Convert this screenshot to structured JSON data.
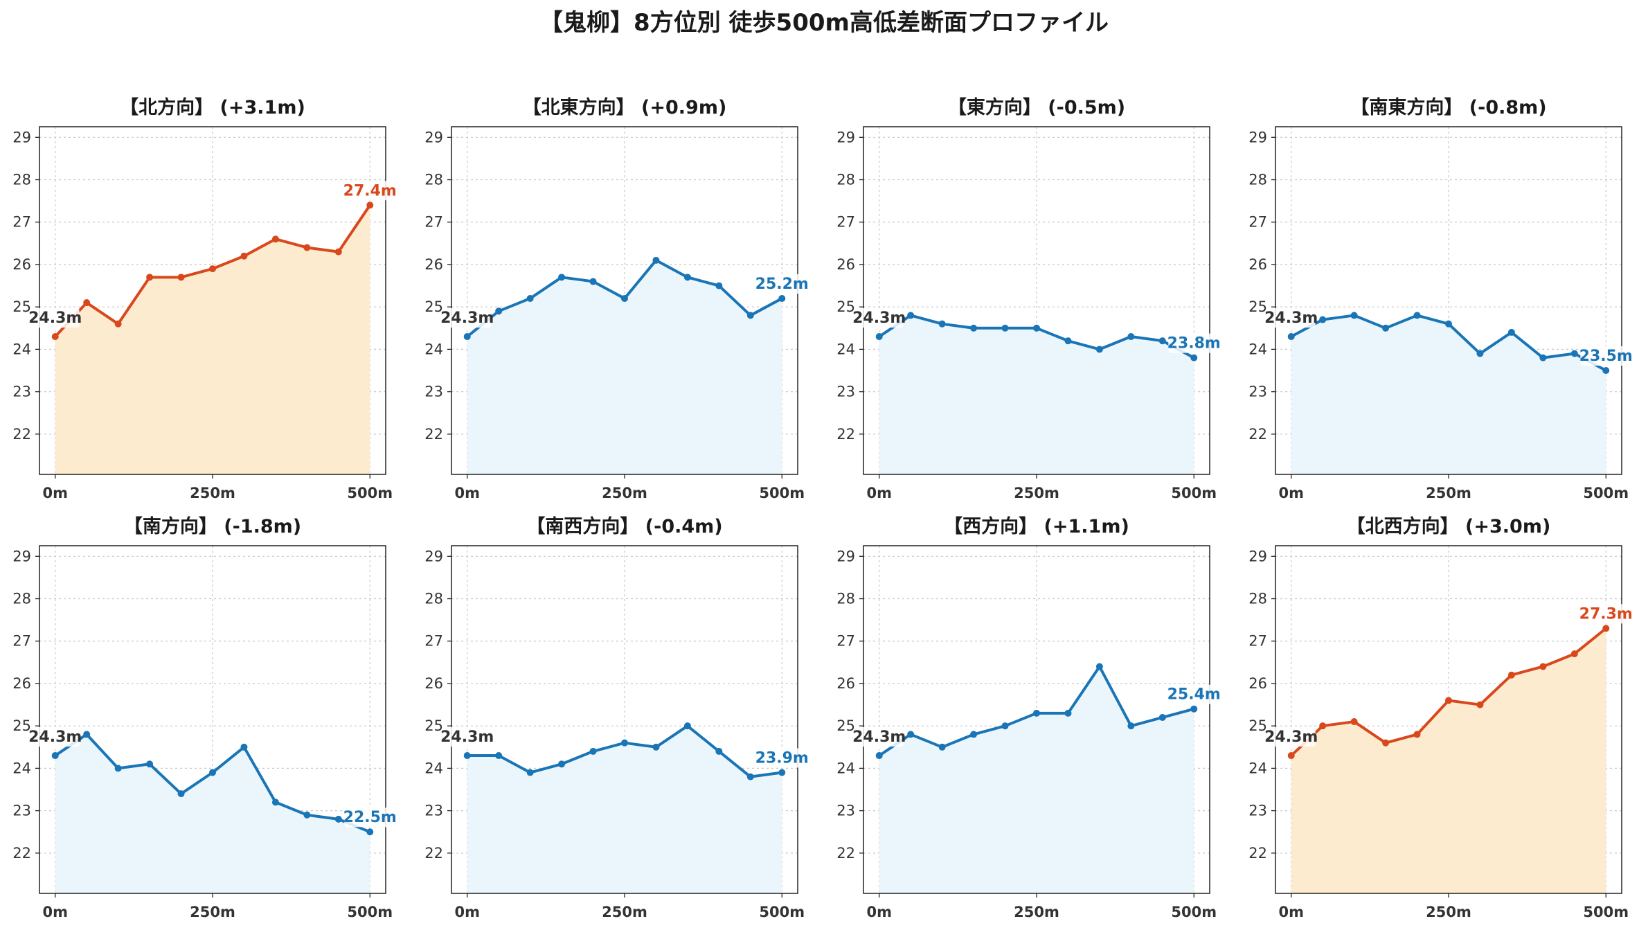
{
  "figure": {
    "title": "【鬼柳】8方位別 徒歩500m高低差断面プロファイル",
    "colors": {
      "rise_line": "#d9481c",
      "rise_fill": "#fdebd0",
      "fall_line": "#1a75b6",
      "fall_fill": "#eaf6fc",
      "start_label": "#333333"
    }
  },
  "chart_data": [
    {
      "type": "area",
      "title": "【北方向】 (+3.1m)",
      "trend": "rise",
      "x": [
        0,
        50,
        100,
        150,
        200,
        250,
        300,
        350,
        400,
        450,
        500
      ],
      "y": [
        24.3,
        25.1,
        24.6,
        25.7,
        25.7,
        25.9,
        26.2,
        26.6,
        26.4,
        26.3,
        27.4
      ],
      "start_label": "24.3m",
      "end_label": "27.4m",
      "xticks": [
        {
          "v": 0,
          "label": "0m"
        },
        {
          "v": 250,
          "label": "250m"
        },
        {
          "v": 500,
          "label": "500m"
        }
      ],
      "yticks": [
        22,
        23,
        24,
        25,
        26,
        27,
        28,
        29
      ],
      "ylim": [
        21.05,
        29.25
      ],
      "xlim": [
        -25,
        525
      ],
      "grid": true
    },
    {
      "type": "area",
      "title": "【北東方向】 (+0.9m)",
      "trend": "fall",
      "x": [
        0,
        50,
        100,
        150,
        200,
        250,
        300,
        350,
        400,
        450,
        500
      ],
      "y": [
        24.3,
        24.9,
        25.2,
        25.7,
        25.6,
        25.2,
        26.1,
        25.7,
        25.5,
        24.8,
        25.2
      ],
      "start_label": "24.3m",
      "end_label": "25.2m",
      "xticks": [
        {
          "v": 0,
          "label": "0m"
        },
        {
          "v": 250,
          "label": "250m"
        },
        {
          "v": 500,
          "label": "500m"
        }
      ],
      "yticks": [
        22,
        23,
        24,
        25,
        26,
        27,
        28,
        29
      ],
      "ylim": [
        21.05,
        29.25
      ],
      "xlim": [
        -25,
        525
      ],
      "grid": true
    },
    {
      "type": "area",
      "title": "【東方向】 (-0.5m)",
      "trend": "fall",
      "x": [
        0,
        50,
        100,
        150,
        200,
        250,
        300,
        350,
        400,
        450,
        500
      ],
      "y": [
        24.3,
        24.8,
        24.6,
        24.5,
        24.5,
        24.5,
        24.2,
        24.0,
        24.3,
        24.2,
        23.8
      ],
      "start_label": "24.3m",
      "end_label": "23.8m",
      "xticks": [
        {
          "v": 0,
          "label": "0m"
        },
        {
          "v": 250,
          "label": "250m"
        },
        {
          "v": 500,
          "label": "500m"
        }
      ],
      "yticks": [
        22,
        23,
        24,
        25,
        26,
        27,
        28,
        29
      ],
      "ylim": [
        21.05,
        29.25
      ],
      "xlim": [
        -25,
        525
      ],
      "grid": true
    },
    {
      "type": "area",
      "title": "【南東方向】 (-0.8m)",
      "trend": "fall",
      "x": [
        0,
        50,
        100,
        150,
        200,
        250,
        300,
        350,
        400,
        450,
        500
      ],
      "y": [
        24.3,
        24.7,
        24.8,
        24.5,
        24.8,
        24.6,
        23.9,
        24.4,
        23.8,
        23.9,
        23.5
      ],
      "start_label": "24.3m",
      "end_label": "23.5m",
      "xticks": [
        {
          "v": 0,
          "label": "0m"
        },
        {
          "v": 250,
          "label": "250m"
        },
        {
          "v": 500,
          "label": "500m"
        }
      ],
      "yticks": [
        22,
        23,
        24,
        25,
        26,
        27,
        28,
        29
      ],
      "ylim": [
        21.05,
        29.25
      ],
      "xlim": [
        -25,
        525
      ],
      "grid": true
    },
    {
      "type": "area",
      "title": "【南方向】 (-1.8m)",
      "trend": "fall",
      "x": [
        0,
        50,
        100,
        150,
        200,
        250,
        300,
        350,
        400,
        450,
        500
      ],
      "y": [
        24.3,
        24.8,
        24.0,
        24.1,
        23.4,
        23.9,
        24.5,
        23.2,
        22.9,
        22.8,
        22.5
      ],
      "start_label": "24.3m",
      "end_label": "22.5m",
      "xticks": [
        {
          "v": 0,
          "label": "0m"
        },
        {
          "v": 250,
          "label": "250m"
        },
        {
          "v": 500,
          "label": "500m"
        }
      ],
      "yticks": [
        22,
        23,
        24,
        25,
        26,
        27,
        28,
        29
      ],
      "ylim": [
        21.05,
        29.25
      ],
      "xlim": [
        -25,
        525
      ],
      "grid": true
    },
    {
      "type": "area",
      "title": "【南西方向】 (-0.4m)",
      "trend": "fall",
      "x": [
        0,
        50,
        100,
        150,
        200,
        250,
        300,
        350,
        400,
        450,
        500
      ],
      "y": [
        24.3,
        24.3,
        23.9,
        24.1,
        24.4,
        24.6,
        24.5,
        25.0,
        24.4,
        23.8,
        23.9
      ],
      "start_label": "24.3m",
      "end_label": "23.9m",
      "xticks": [
        {
          "v": 0,
          "label": "0m"
        },
        {
          "v": 250,
          "label": "250m"
        },
        {
          "v": 500,
          "label": "500m"
        }
      ],
      "yticks": [
        22,
        23,
        24,
        25,
        26,
        27,
        28,
        29
      ],
      "ylim": [
        21.05,
        29.25
      ],
      "xlim": [
        -25,
        525
      ],
      "grid": true
    },
    {
      "type": "area",
      "title": "【西方向】 (+1.1m)",
      "trend": "fall",
      "x": [
        0,
        50,
        100,
        150,
        200,
        250,
        300,
        350,
        400,
        450,
        500
      ],
      "y": [
        24.3,
        24.8,
        24.5,
        24.8,
        25.0,
        25.3,
        25.3,
        26.4,
        25.0,
        25.2,
        25.4
      ],
      "start_label": "24.3m",
      "end_label": "25.4m",
      "xticks": [
        {
          "v": 0,
          "label": "0m"
        },
        {
          "v": 250,
          "label": "250m"
        },
        {
          "v": 500,
          "label": "500m"
        }
      ],
      "yticks": [
        22,
        23,
        24,
        25,
        26,
        27,
        28,
        29
      ],
      "ylim": [
        21.05,
        29.25
      ],
      "xlim": [
        -25,
        525
      ],
      "grid": true
    },
    {
      "type": "area",
      "title": "【北西方向】 (+3.0m)",
      "trend": "rise",
      "x": [
        0,
        50,
        100,
        150,
        200,
        250,
        300,
        350,
        400,
        450,
        500
      ],
      "y": [
        24.3,
        25.0,
        25.1,
        24.6,
        24.8,
        25.6,
        25.5,
        26.2,
        26.4,
        26.7,
        27.3
      ],
      "start_label": "24.3m",
      "end_label": "27.3m",
      "xticks": [
        {
          "v": 0,
          "label": "0m"
        },
        {
          "v": 250,
          "label": "250m"
        },
        {
          "v": 500,
          "label": "500m"
        }
      ],
      "yticks": [
        22,
        23,
        24,
        25,
        26,
        27,
        28,
        29
      ],
      "ylim": [
        21.05,
        29.25
      ],
      "xlim": [
        -25,
        525
      ],
      "grid": true
    }
  ]
}
